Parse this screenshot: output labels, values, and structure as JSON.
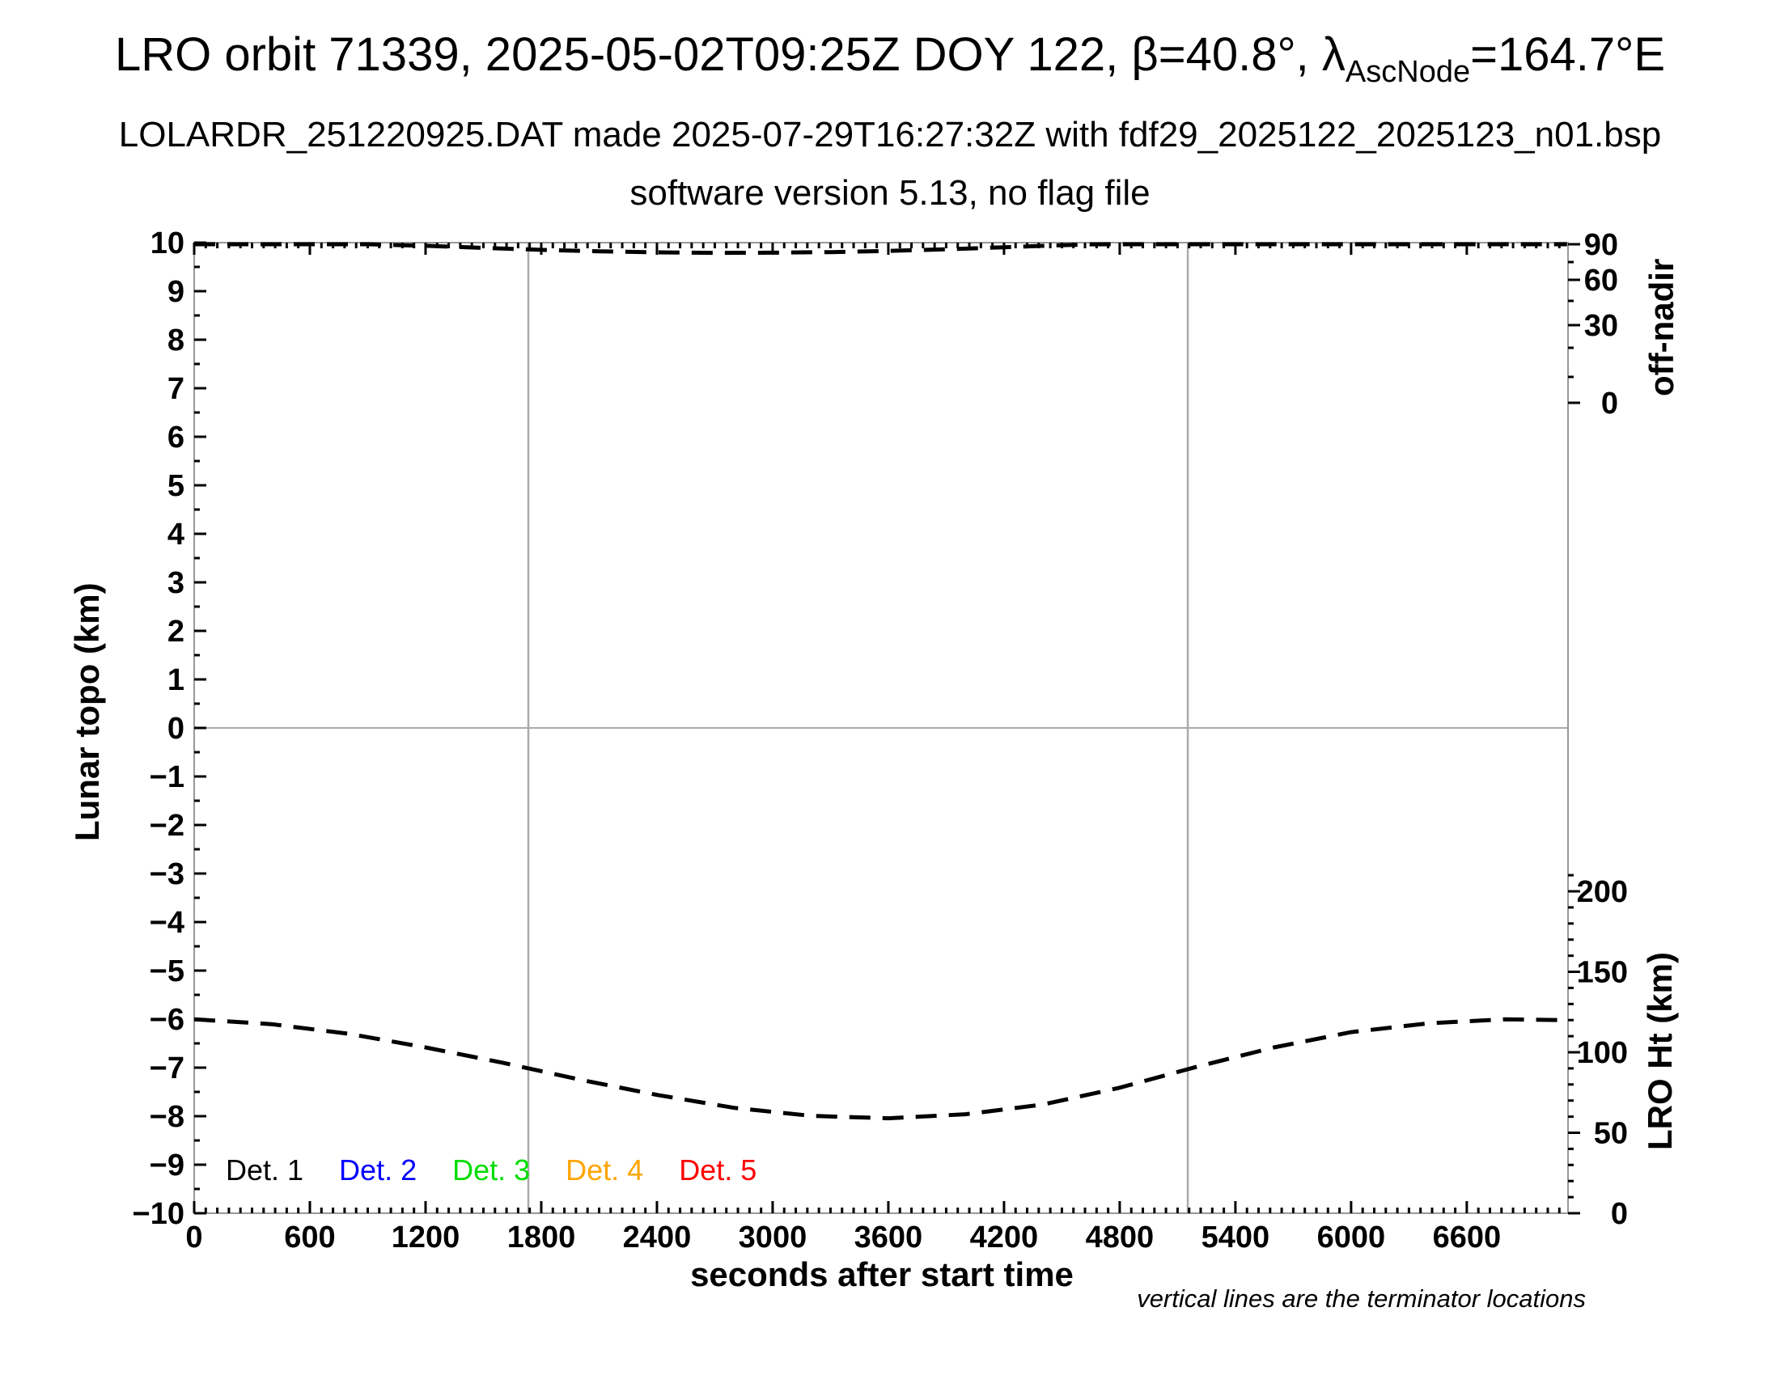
{
  "header": {
    "title_pre": "LRO orbit 71339, 2025-05-02T09:25Z DOY 122, β=40.8°, λ",
    "title_sub": "AscNode",
    "title_post": "=164.7°E",
    "line2": "LOLARDR_251220925.DAT made 2025-07-29T16:27:32Z with fdf29_2025122_2025123_n01.bsp",
    "line3": "software version 5.13, no flag file"
  },
  "footnote": "vertical lines are the terminator locations",
  "legend": {
    "items": [
      {
        "label": "Det. 1",
        "color": "#000000"
      },
      {
        "label": "Det. 2",
        "color": "#0000ff"
      },
      {
        "label": "Det. 3",
        "color": "#00dd00"
      },
      {
        "label": "Det. 4",
        "color": "#ffa500"
      },
      {
        "label": "Det. 5",
        "color": "#ff0000"
      }
    ]
  },
  "chart_data": {
    "type": "line",
    "title": "LRO orbit 71339, 2025-05-02T09:25Z DOY 122, β=40.8°, λAscNode=164.7°E",
    "x_axis": {
      "label": "seconds after start time",
      "range": [
        0,
        7125
      ],
      "major_tick": 600,
      "minor_tick": 60,
      "tick_labels": [
        0,
        600,
        1200,
        1800,
        2400,
        3000,
        3600,
        4200,
        4800,
        5400,
        6000,
        6600
      ]
    },
    "y_left": {
      "label": "Lunar topo (km)",
      "range": [
        -10,
        10
      ],
      "major_tick": 1,
      "minor_tick": 0.5,
      "tick_labels": [
        10,
        9,
        8,
        7,
        6,
        5,
        4,
        3,
        2,
        1,
        0,
        -1,
        -2,
        -3,
        -4,
        -5,
        -6,
        -7,
        -8,
        -9,
        -10
      ]
    },
    "y_right_top": {
      "label": "off-nadir",
      "unit": "degrees",
      "scale": "nonlinear",
      "tick_labels": [
        90,
        60,
        30,
        0
      ]
    },
    "y_right_bottom": {
      "label": "LRO Ht (km)",
      "range": [
        0,
        210
      ],
      "major_tick": 50,
      "minor_tick": 10,
      "tick_labels": [
        200,
        150,
        100,
        50,
        0
      ]
    },
    "grid": {
      "horizontal_line_topo_km": 0,
      "terminator_lines_s": [
        1733,
        5153
      ]
    },
    "legend_position": "bottom-left-inside",
    "series": [
      {
        "name": "off-nadir angle",
        "axis": "y_right_top",
        "style": "dashed",
        "color": "#000000",
        "x": [
          0,
          500,
          900,
          1200,
          1500,
          1800,
          2100,
          2400,
          2700,
          3000,
          3300,
          3600,
          3900,
          4200,
          4450,
          4650,
          4800,
          5400,
          6000,
          6600,
          7120
        ],
        "y": [
          90,
          90,
          90,
          88.7,
          86.9,
          85.3,
          84.1,
          83.2,
          82.8,
          82.9,
          83.4,
          84.4,
          85.8,
          87.5,
          89.0,
          89.9,
          90,
          90,
          90,
          90,
          90
        ]
      },
      {
        "name": "LRO height",
        "axis": "y_right_bottom",
        "style": "dashed",
        "color": "#000000",
        "x": [
          0,
          400,
          800,
          1200,
          1600,
          2000,
          2400,
          2800,
          3200,
          3600,
          4000,
          4400,
          4800,
          5200,
          5600,
          6000,
          6400,
          6800,
          7100
        ],
        "y": [
          120.5,
          117.5,
          111.5,
          103,
          93.5,
          83,
          73.5,
          65.5,
          60.5,
          59,
          61.5,
          67.5,
          78,
          91,
          103,
          112.5,
          118,
          120.5,
          120
        ]
      }
    ]
  }
}
